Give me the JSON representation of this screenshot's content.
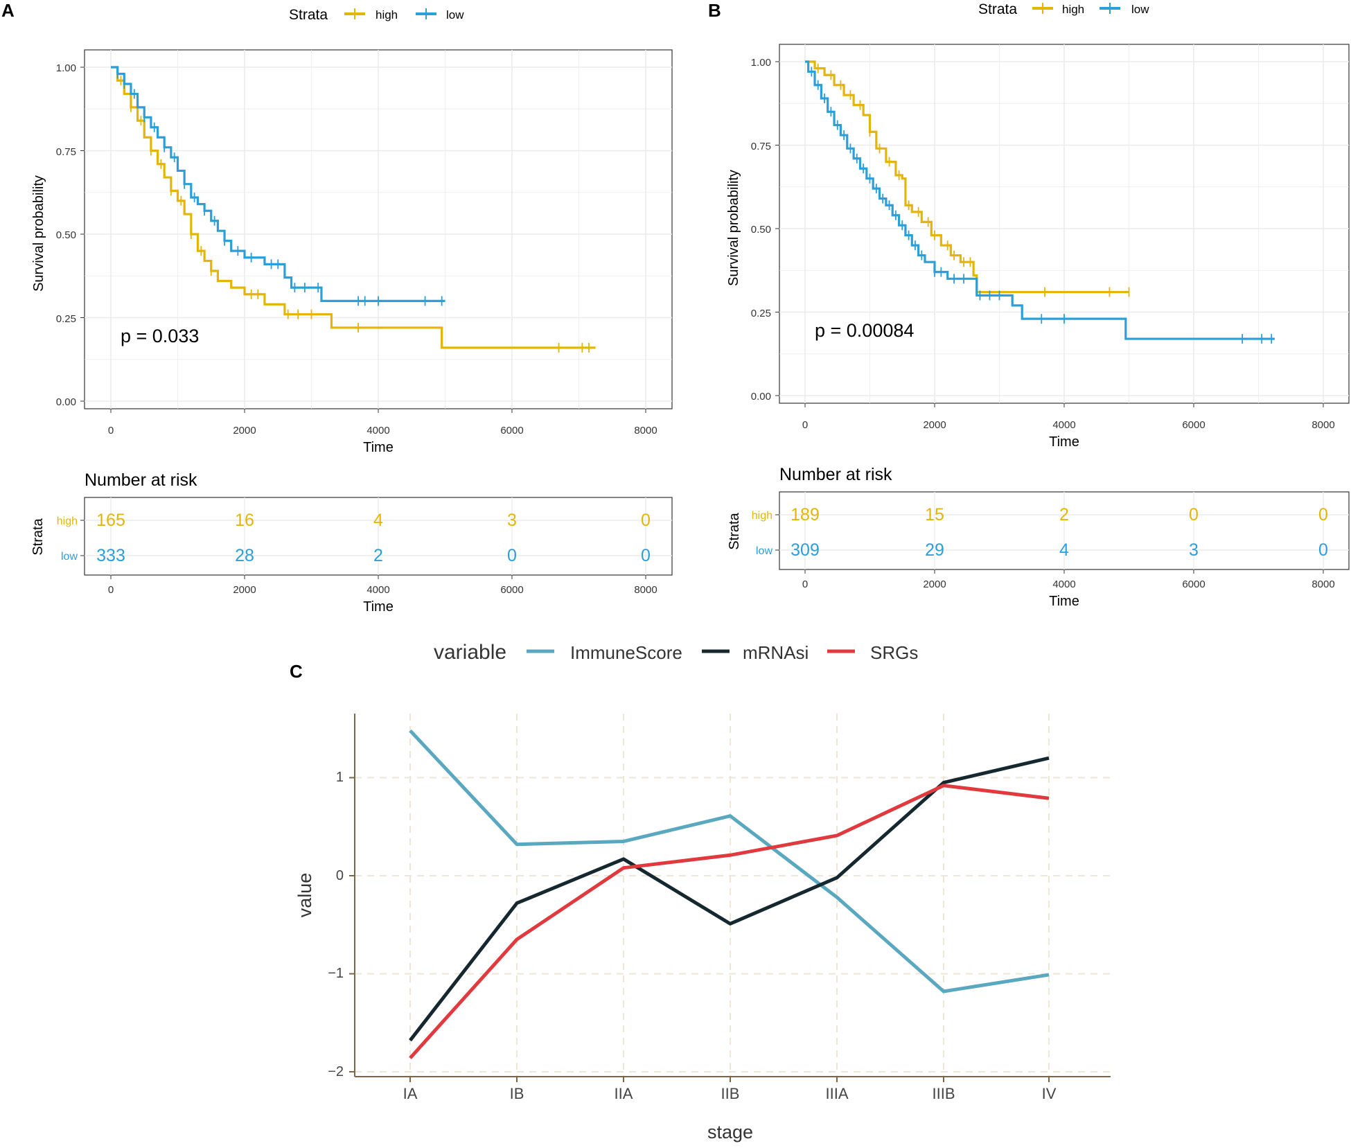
{
  "colors": {
    "high": "#e3b505",
    "low": "#2a9fd8",
    "immune": "#5aa7c0",
    "mrnasi": "#16282f",
    "srgs": "#e03a3e",
    "axis": "#7a6548",
    "grid": "#efe5d6"
  },
  "chart_data": [
    {
      "panel": "A",
      "type": "line",
      "subtype": "kaplan-meier",
      "legend": {
        "title": "Strata",
        "items": [
          "high",
          "low"
        ],
        "placement": "top"
      },
      "xlabel": "Time",
      "ylabel": "Survival probability",
      "xlim": [
        0,
        8000
      ],
      "ylim": [
        0,
        1
      ],
      "xticks": [
        "0",
        "2000",
        "4000",
        "6000",
        "8000"
      ],
      "yticks": [
        "0.00",
        "0.25",
        "0.50",
        "0.75",
        "1.00"
      ],
      "annotation": "p = 0.033",
      "series": [
        {
          "name": "high",
          "x": [
            0,
            100,
            200,
            300,
            400,
            500,
            600,
            700,
            800,
            900,
            1000,
            1100,
            1200,
            1300,
            1400,
            1500,
            1600,
            1800,
            2000,
            2300,
            2600,
            3300,
            4950,
            7250
          ],
          "y": [
            1.0,
            0.96,
            0.92,
            0.88,
            0.84,
            0.79,
            0.75,
            0.71,
            0.67,
            0.63,
            0.6,
            0.56,
            0.5,
            0.45,
            0.42,
            0.39,
            0.36,
            0.34,
            0.32,
            0.29,
            0.26,
            0.22,
            0.16,
            0.16
          ],
          "censors": [
            150,
            300,
            450,
            600,
            750,
            900,
            1050,
            1200,
            1350,
            1500,
            2100,
            2200,
            2650,
            2800,
            3000,
            3700,
            6700,
            7050,
            7150
          ]
        },
        {
          "name": "low",
          "x": [
            0,
            100,
            200,
            300,
            400,
            500,
            600,
            700,
            800,
            900,
            1000,
            1100,
            1200,
            1300,
            1400,
            1500,
            1600,
            1700,
            1800,
            2000,
            2300,
            2600,
            2700,
            3150,
            3300,
            5000
          ],
          "y": [
            1.0,
            0.98,
            0.95,
            0.92,
            0.88,
            0.85,
            0.82,
            0.79,
            0.76,
            0.73,
            0.69,
            0.65,
            0.61,
            0.59,
            0.57,
            0.54,
            0.51,
            0.48,
            0.45,
            0.43,
            0.41,
            0.37,
            0.34,
            0.3,
            0.3,
            0.3
          ],
          "censors": [
            100,
            200,
            350,
            500,
            650,
            800,
            950,
            1100,
            1250,
            1400,
            1550,
            1700,
            1900,
            2100,
            2400,
            2500,
            2750,
            2900,
            3100,
            3700,
            3800,
            4000,
            4700,
            4950
          ]
        }
      ],
      "risk_table": {
        "title": "Number at risk",
        "ylabel": "Strata",
        "xlabel": "Time",
        "times": [
          0,
          2000,
          4000,
          6000,
          8000
        ],
        "rows": [
          {
            "name": "high",
            "counts": [
              "165",
              "16",
              "4",
              "3",
              "0"
            ]
          },
          {
            "name": "low",
            "counts": [
              "333",
              "28",
              "2",
              "0",
              "0"
            ]
          }
        ]
      }
    },
    {
      "panel": "B",
      "type": "line",
      "subtype": "kaplan-meier",
      "legend": {
        "title": "Strata",
        "items": [
          "high",
          "low"
        ],
        "placement": "top"
      },
      "xlabel": "Time",
      "ylabel": "Survival probability",
      "xlim": [
        0,
        8000
      ],
      "ylim": [
        0,
        1
      ],
      "xticks": [
        "0",
        "2000",
        "4000",
        "6000",
        "8000"
      ],
      "yticks": [
        "0.00",
        "0.25",
        "0.50",
        "0.75",
        "1.00"
      ],
      "annotation": "p = 0.00084",
      "series": [
        {
          "name": "high",
          "x": [
            0,
            150,
            300,
            450,
            600,
            750,
            900,
            1000,
            1100,
            1250,
            1400,
            1500,
            1550,
            1650,
            1800,
            1950,
            2100,
            2250,
            2400,
            2600,
            2650,
            5000
          ],
          "y": [
            1.0,
            0.98,
            0.96,
            0.93,
            0.9,
            0.87,
            0.84,
            0.79,
            0.74,
            0.7,
            0.66,
            0.65,
            0.57,
            0.55,
            0.52,
            0.48,
            0.45,
            0.42,
            0.4,
            0.36,
            0.31,
            0.31
          ],
          "censors": [
            200,
            400,
            550,
            700,
            850,
            1000,
            1150,
            1300,
            1450,
            1600,
            1750,
            1900,
            2000,
            2200,
            2300,
            2450,
            2550,
            3700,
            4700,
            5000
          ]
        },
        {
          "name": "low",
          "x": [
            0,
            50,
            150,
            250,
            350,
            450,
            550,
            650,
            750,
            850,
            950,
            1050,
            1150,
            1250,
            1350,
            1450,
            1550,
            1650,
            1750,
            1850,
            2000,
            2200,
            2650,
            3200,
            3350,
            4950,
            7250
          ],
          "y": [
            1.0,
            0.97,
            0.93,
            0.89,
            0.85,
            0.81,
            0.78,
            0.74,
            0.71,
            0.68,
            0.65,
            0.62,
            0.59,
            0.57,
            0.54,
            0.51,
            0.48,
            0.45,
            0.42,
            0.4,
            0.37,
            0.35,
            0.3,
            0.27,
            0.23,
            0.17,
            0.17
          ],
          "censors": [
            100,
            200,
            300,
            400,
            500,
            600,
            700,
            800,
            900,
            1000,
            1100,
            1200,
            1300,
            1400,
            1500,
            1600,
            1700,
            1800,
            2000,
            2100,
            2300,
            2450,
            2700,
            2850,
            3000,
            3650,
            4000,
            6750,
            7050,
            7200
          ]
        }
      ],
      "risk_table": {
        "title": "Number at risk",
        "ylabel": "Strata",
        "xlabel": "Time",
        "times": [
          0,
          2000,
          4000,
          6000,
          8000
        ],
        "rows": [
          {
            "name": "high",
            "counts": [
              "189",
              "15",
              "2",
              "0",
              "0"
            ]
          },
          {
            "name": "low",
            "counts": [
              "309",
              "29",
              "4",
              "3",
              "0"
            ]
          }
        ]
      }
    },
    {
      "panel": "C",
      "type": "line",
      "legend": {
        "title": "variable",
        "items": [
          "ImmuneScore",
          "mRNAsi",
          "SRGs"
        ],
        "placement": "top"
      },
      "xlabel": "stage",
      "ylabel": "value",
      "categories": [
        "IA",
        "IB",
        "IIA",
        "IIB",
        "IIIA",
        "IIIB",
        "IV"
      ],
      "ylim": [
        -2.03,
        1.65
      ],
      "yticks": [
        "-2",
        "-1",
        "0",
        "1"
      ],
      "series": [
        {
          "name": "ImmuneScore",
          "values": [
            1.48,
            0.32,
            0.35,
            0.61,
            -0.22,
            -1.18,
            -1.01
          ]
        },
        {
          "name": "mRNAsi",
          "values": [
            -1.68,
            -0.28,
            0.17,
            -0.49,
            -0.02,
            0.95,
            1.2
          ]
        },
        {
          "name": "SRGs",
          "values": [
            -1.86,
            -0.65,
            0.08,
            0.21,
            0.41,
            0.92,
            0.79
          ]
        }
      ]
    }
  ]
}
